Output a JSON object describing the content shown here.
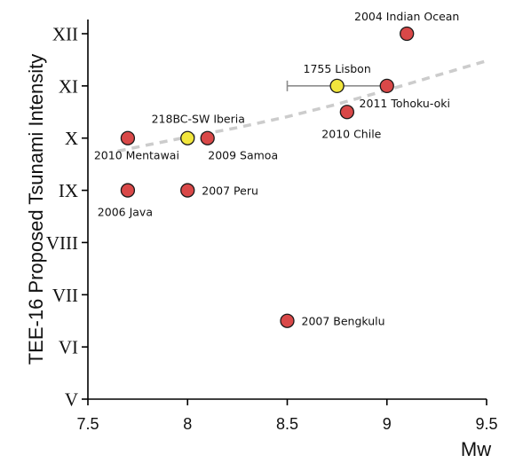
{
  "chart_data": {
    "type": "scatter",
    "xlabel": "Mw",
    "ylabel": "TEE-16 Proposed Tsunami Intensity",
    "xlim": [
      7.5,
      9.5
    ],
    "ylim": [
      5,
      12
    ],
    "x_ticks": [
      "7.5",
      "8",
      "8.5",
      "9",
      "9.5"
    ],
    "y_ticks": [
      "V",
      "VI",
      "VII",
      "VIII",
      "IX",
      "X",
      "XI",
      "XII"
    ],
    "colors": {
      "modern": "#d94848",
      "historical": "#f2e63d"
    },
    "points": [
      {
        "name": "2004 Indian Ocean",
        "x": 9.1,
        "y": 12,
        "kind": "modern",
        "label_side": "above"
      },
      {
        "name": "1755 Lisbon",
        "x": 8.75,
        "y": 11,
        "kind": "historical",
        "label_side": "above",
        "xerr": [
          8.5,
          9.0
        ]
      },
      {
        "name": "2011 Tohoku-oki",
        "x": 9.0,
        "y": 11,
        "kind": "modern",
        "label_side": "below-right"
      },
      {
        "name": "2010 Chile",
        "x": 8.8,
        "y": 10.5,
        "kind": "modern",
        "label_side": "below"
      },
      {
        "name": "218BC-SW Iberia",
        "x": 8.0,
        "y": 10,
        "kind": "historical",
        "label_side": "above-right"
      },
      {
        "name": "2010 Mentawai",
        "x": 7.7,
        "y": 10,
        "kind": "modern",
        "label_side": "below-right"
      },
      {
        "name": "2009 Samoa",
        "x": 8.1,
        "y": 10,
        "kind": "modern",
        "label_side": "below-right"
      },
      {
        "name": "2006 Java",
        "x": 7.7,
        "y": 9,
        "kind": "modern",
        "label_side": "below"
      },
      {
        "name": "2007 Peru",
        "x": 8.0,
        "y": 9,
        "kind": "modern",
        "label_side": "right"
      },
      {
        "name": "2007 Bengkulu",
        "x": 8.5,
        "y": 6.5,
        "kind": "modern",
        "label_side": "right"
      }
    ],
    "trendline": {
      "style": "dashed",
      "x": [
        7.65,
        7.8,
        8.0,
        8.25,
        8.5,
        8.75,
        9.0,
        9.25,
        9.5
      ],
      "y": [
        9.75,
        9.87,
        10.02,
        10.2,
        10.41,
        10.65,
        10.92,
        11.2,
        11.48
      ]
    }
  }
}
